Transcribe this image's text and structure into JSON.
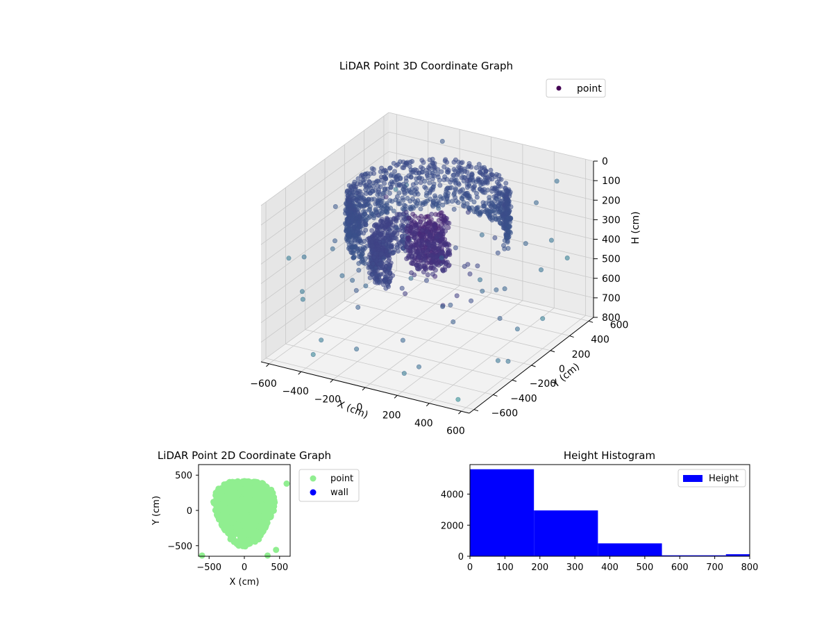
{
  "chart_data": [
    {
      "type": "scatter",
      "projection": "3d",
      "title": "LiDAR Point 3D Coordinate Graph",
      "xlabel": "X (cm)",
      "ylabel": "Y (cm)",
      "zlabel": "H (cm)",
      "xlim": [
        -650,
        650
      ],
      "ylim": [
        -650,
        650
      ],
      "zlim": [
        800,
        0
      ],
      "z_inverted": true,
      "grid": true,
      "colormap": "viridis",
      "x_ticks": [
        "−600",
        "−400",
        "−200",
        "0",
        "200",
        "400",
        "600"
      ],
      "y_ticks": [
        "−600",
        "−400",
        "−200",
        "0",
        "200",
        "400",
        "600"
      ],
      "z_ticks": [
        "0",
        "100",
        "200",
        "300",
        "400",
        "500",
        "600",
        "700",
        "800"
      ],
      "legend": {
        "position": "upper-right",
        "entries": [
          {
            "label": "point",
            "color": "#440154"
          }
        ]
      },
      "structure": {
        "ring": {
          "shape": "half-ring of dense points along the far wall",
          "radius": 430,
          "angle_range_deg": [
            15,
            250
          ],
          "height_range": [
            50,
            300
          ]
        },
        "inner_ring": {
          "shape": "lower inner arc",
          "radius": 300,
          "angle_range_deg": [
            140,
            260
          ],
          "height_range": [
            250,
            450
          ]
        },
        "blob": {
          "center": [
            40,
            -60
          ],
          "radius": 120,
          "height_range": [
            150,
            400
          ]
        },
        "scattered_outliers": "about 80 isolated points spread across the volume"
      }
    },
    {
      "type": "scatter",
      "title": "LiDAR Point 2D Coordinate Graph",
      "xlabel": "X (cm)",
      "ylabel": "Y (cm)",
      "xlim": [
        -650,
        650
      ],
      "ylim": [
        -650,
        650
      ],
      "x_ticks": [
        "−500",
        "0",
        "500"
      ],
      "y_ticks": [
        "−500",
        "0",
        "500"
      ],
      "legend": {
        "position": "outside-right",
        "entries": [
          {
            "label": "point",
            "color": "#90ee90"
          },
          {
            "label": "wall",
            "color": "#0000ff"
          }
        ]
      },
      "series": [
        {
          "name": "point",
          "color": "#90ee90",
          "shape": "dense roughly circular cloud of top-view points",
          "radius_approx": 520
        },
        {
          "name": "wall",
          "color": "#0000ff",
          "values": []
        }
      ]
    },
    {
      "type": "bar",
      "subtype": "histogram",
      "title": "Height Histogram",
      "xlim": [
        0,
        800
      ],
      "ylim": [
        0,
        5900
      ],
      "x_ticks": [
        "0",
        "100",
        "200",
        "300",
        "400",
        "500",
        "600",
        "700",
        "800"
      ],
      "y_ticks": [
        "0",
        "2000",
        "4000"
      ],
      "legend": {
        "position": "upper-right",
        "entries": [
          {
            "label": "Height",
            "color": "#0000ff"
          }
        ]
      },
      "bins": [
        {
          "start": 0,
          "end": 183,
          "count": 5600
        },
        {
          "start": 183,
          "end": 366,
          "count": 2950
        },
        {
          "start": 366,
          "end": 549,
          "count": 830
        },
        {
          "start": 549,
          "end": 732,
          "count": 60
        },
        {
          "start": 732,
          "end": 915,
          "count": 130
        }
      ],
      "color": "#0000ff"
    }
  ]
}
